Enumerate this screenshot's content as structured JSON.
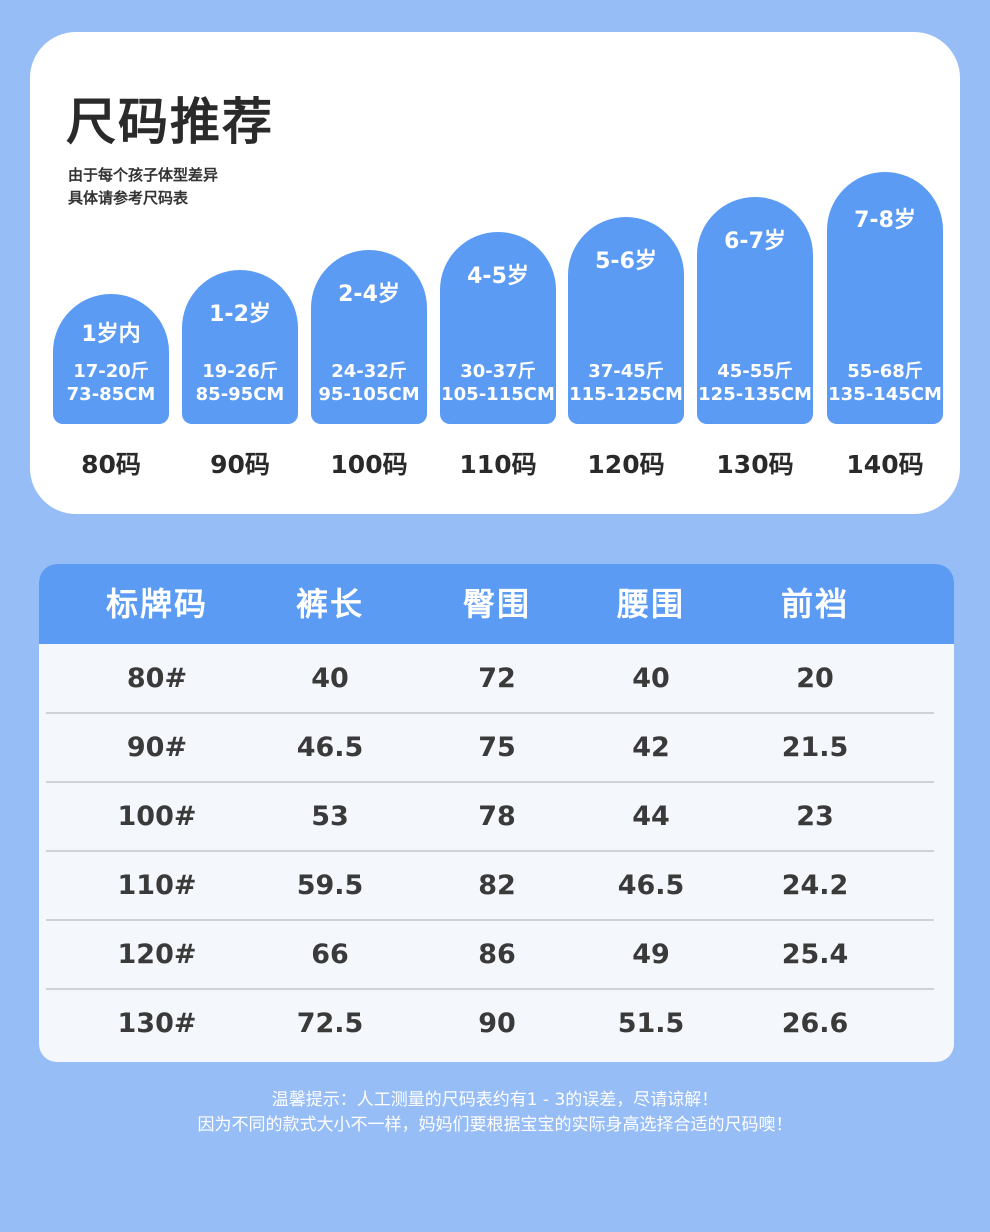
{
  "header": {
    "title": "尺码推荐",
    "subtitle_line1": "由于每个孩子体型差异",
    "subtitle_line2": "具体请参考尺码表"
  },
  "recommendations": [
    {
      "age": "1岁内",
      "weight": "17-20斤",
      "height": "73-85CM",
      "size": "80码"
    },
    {
      "age": "1-2岁",
      "weight": "19-26斤",
      "height": "85-95CM",
      "size": "90码"
    },
    {
      "age": "2-4岁",
      "weight": "24-32斤",
      "height": "95-105CM",
      "size": "100码"
    },
    {
      "age": "4-5岁",
      "weight": "30-37斤",
      "height": "105-115CM",
      "size": "110码"
    },
    {
      "age": "5-6岁",
      "weight": "37-45斤",
      "height": "115-125CM",
      "size": "120码"
    },
    {
      "age": "6-7岁",
      "weight": "45-55斤",
      "height": "125-135CM",
      "size": "130码"
    },
    {
      "age": "7-8岁",
      "weight": "55-68斤",
      "height": "135-145CM",
      "size": "140码"
    }
  ],
  "table": {
    "headers": [
      "标牌码",
      "裤长",
      "臀围",
      "腰围",
      "前裆"
    ],
    "rows": [
      [
        "80#",
        "40",
        "72",
        "40",
        "20"
      ],
      [
        "90#",
        "46.5",
        "75",
        "42",
        "21.5"
      ],
      [
        "100#",
        "53",
        "78",
        "44",
        "23"
      ],
      [
        "110#",
        "59.5",
        "82",
        "46.5",
        "24.2"
      ],
      [
        "120#",
        "66",
        "86",
        "49",
        "25.4"
      ],
      [
        "130#",
        "72.5",
        "90",
        "51.5",
        "26.6"
      ]
    ]
  },
  "footer": {
    "line1": "温馨提示：人工测量的尺码表约有1 - 3的误差，尽请谅解！",
    "line2": "因为不同的款式大小不一样，妈妈们要根据宝宝的实际身高选择合适的尺码噢！"
  },
  "colors": {
    "background": "#97bdf7",
    "accent": "#5b9bf3",
    "card": "#ffffff",
    "table_body": "#f4f7fc"
  }
}
